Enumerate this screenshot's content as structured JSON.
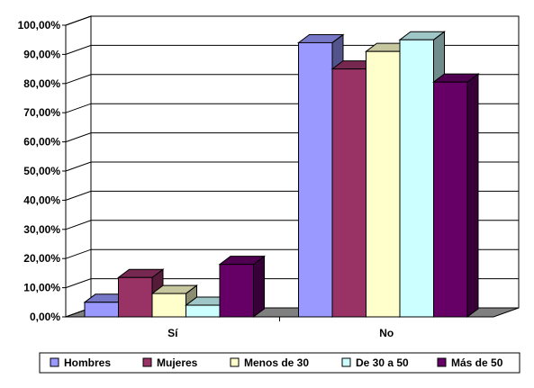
{
  "chart_data": {
    "type": "bar",
    "style": "3d-clustered",
    "categories": [
      "Sí",
      "No"
    ],
    "series": [
      {
        "name": "Hombres",
        "color": "#9999FF",
        "values": [
          5,
          94
        ]
      },
      {
        "name": "Mujeres",
        "color": "#993366",
        "values": [
          13.5,
          85
        ]
      },
      {
        "name": "Menos de 30",
        "color": "#FFFFCC",
        "values": [
          8,
          91
        ]
      },
      {
        "name": "De 30 a 50",
        "color": "#CCFFFF",
        "values": [
          4,
          95
        ]
      },
      {
        "name": "Más de 50",
        "color": "#660066",
        "values": [
          18,
          80.5
        ]
      }
    ],
    "yticks": [
      "0,00%",
      "10,00%",
      "20,00%",
      "30,00%",
      "40,00%",
      "50,00%",
      "60,00%",
      "70,00%",
      "80,00%",
      "90,00%",
      "100,00%"
    ],
    "ylim": [
      0,
      100
    ],
    "grid": true,
    "legend_position": "bottom",
    "title": "",
    "xlabel": "",
    "ylabel": ""
  }
}
